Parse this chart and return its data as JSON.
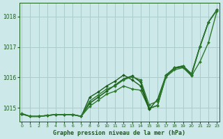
{
  "title": "Graphe pression niveau de la mer (hPa)",
  "bg_color": "#cce8e8",
  "plot_bg_color": "#cce8e8",
  "grid_color": "#aacccc",
  "line_color_dark": "#1a5c1a",
  "line_color_mid": "#2d7a2d",
  "xlim": [
    -0.3,
    23.3
  ],
  "ylim": [
    1014.55,
    1018.45
  ],
  "yticks": [
    1015,
    1016,
    1017,
    1018
  ],
  "xticks": [
    0,
    1,
    2,
    3,
    4,
    5,
    6,
    7,
    8,
    9,
    10,
    11,
    12,
    13,
    14,
    15,
    16,
    17,
    18,
    19,
    20,
    21,
    22,
    23
  ],
  "series": [
    [
      1014.8,
      1014.72,
      1014.72,
      1014.75,
      1014.78,
      1014.78,
      1014.78,
      1014.72,
      1015.15,
      1015.35,
      1015.55,
      1015.75,
      1015.95,
      1016.05,
      1015.85,
      1014.98,
      1015.08,
      1016.05,
      1016.3,
      1016.35,
      1016.08,
      1017.02,
      1017.82,
      1018.22
    ],
    [
      1014.8,
      1014.72,
      1014.72,
      1014.75,
      1014.78,
      1014.78,
      1014.78,
      1014.72,
      1015.05,
      1015.25,
      1015.45,
      1015.55,
      1015.72,
      1015.62,
      1015.58,
      1014.98,
      1015.08,
      1016.02,
      1016.25,
      1016.32,
      1016.05,
      1016.52,
      1017.15,
      1018.18
    ],
    [
      1014.8,
      1014.72,
      1014.72,
      1014.75,
      1014.78,
      1014.78,
      1014.78,
      1014.72,
      1015.35,
      1015.52,
      1015.72,
      1015.88,
      1016.08,
      1015.92,
      1015.72,
      1014.95,
      1015.28,
      1016.08,
      1016.32,
      1016.38,
      1016.12,
      1017.02,
      1017.82,
      1018.22
    ],
    [
      1014.82,
      1014.72,
      1014.72,
      1014.75,
      1014.78,
      1014.78,
      1014.78,
      1014.72,
      1015.22,
      1015.42,
      1015.62,
      1015.72,
      1015.92,
      1016.02,
      1015.92,
      1015.1,
      1015.22,
      1016.05,
      1016.32,
      1016.38,
      1016.12,
      1017.02,
      1017.82,
      1018.22
    ]
  ]
}
